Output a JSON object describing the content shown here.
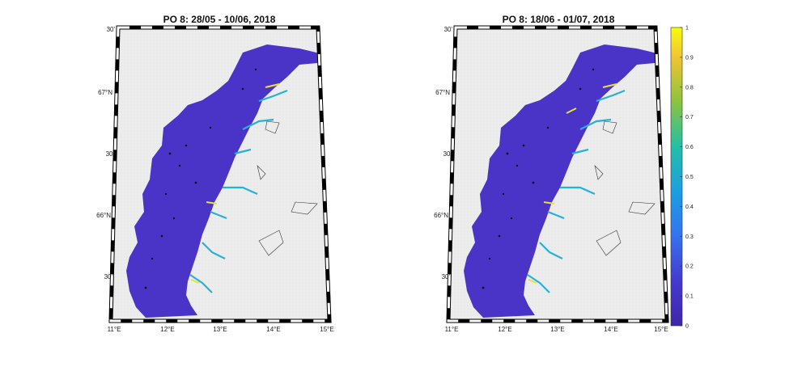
{
  "panels": [
    {
      "title": "PO 8: 28/05 - 10/06, 2018",
      "lat_labels": [
        "30'",
        "67°N",
        "30'",
        "66°N",
        "30'"
      ],
      "lon_labels": [
        "11°E",
        "12°E",
        "13°E",
        "14°E",
        "15°E"
      ]
    },
    {
      "title": "PO 8: 18/06 - 01/07, 2018",
      "lat_labels": [
        "30'",
        "67°N",
        "30'",
        "66°N",
        "30'"
      ],
      "lon_labels": [
        "11°E",
        "12°E",
        "13°E",
        "14°E",
        "15°E"
      ]
    }
  ],
  "colorbar": {
    "ticks": [
      "1",
      "0.9",
      "0.8",
      "0.7",
      "0.6",
      "0.5",
      "0.4",
      "0.3",
      "0.2",
      "0.1",
      "0"
    ],
    "colors": {
      "low": "#3e26a8",
      "mid": "#1fb3d3",
      "high": "#f9fb0e"
    }
  },
  "colors": {
    "land": "#ececec",
    "sea_low": "#4a34c8",
    "frame_dark": "#000000",
    "frame_light": "#ffffff"
  }
}
